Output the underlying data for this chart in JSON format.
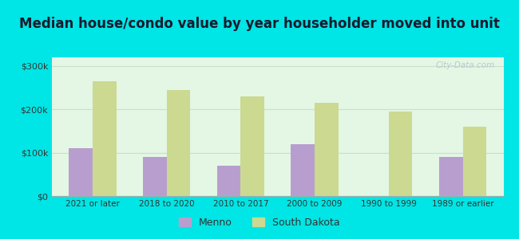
{
  "title": "Median house/condo value by year householder moved into unit",
  "categories": [
    "2021 or later",
    "2018 to 2020",
    "2010 to 2017",
    "2000 to 2009",
    "1990 to 1999",
    "1989 or earlier"
  ],
  "menno_values": [
    110000,
    90000,
    70000,
    120000,
    0,
    90000
  ],
  "sd_values": [
    265000,
    245000,
    230000,
    215000,
    195000,
    160000
  ],
  "menno_color": "#b89ece",
  "sd_color": "#ccd990",
  "background_color": "#e4f7e4",
  "outer_background": "#00e5e5",
  "yticks": [
    0,
    100000,
    200000,
    300000
  ],
  "ylabels": [
    "$0",
    "$100k",
    "$200k",
    "$300k"
  ],
  "ylim": [
    0,
    320000
  ],
  "legend_menno": "Menno",
  "legend_sd": "South Dakota",
  "title_fontsize": 12,
  "title_color": "#1a1a2e",
  "watermark": "City-Data.com",
  "bar_width": 0.32
}
